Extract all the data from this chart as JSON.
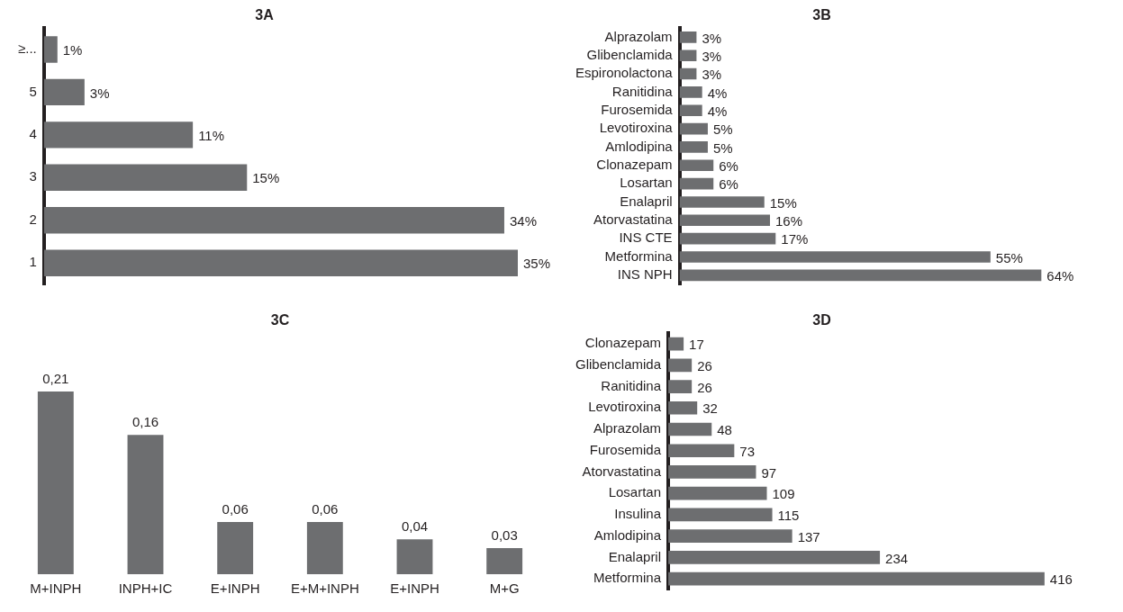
{
  "chart_data": [
    {
      "type": "bar",
      "title": "3A",
      "orientation": "horizontal",
      "tick_labels": "y",
      "grid": false,
      "color": "#6d6e70",
      "categories": [
        "≥...",
        "5",
        "4",
        "3",
        "2",
        "1"
      ],
      "values": [
        1,
        3,
        11,
        15,
        34,
        35
      ],
      "value_labels": [
        "1%",
        "3%",
        "11%",
        "15%",
        "34%",
        "35%"
      ]
    },
    {
      "type": "bar",
      "title": "3B",
      "orientation": "horizontal",
      "tick_labels": "y",
      "grid": false,
      "color": "#6d6e70",
      "categories": [
        "Alprazolam",
        "Glibenclamida",
        "Espironolactona",
        "Ranitidina",
        "Furosemida",
        "Levotiroxina",
        "Amlodipina",
        "Clonazepam",
        "Losartan",
        "Enalapril",
        "Atorvastatina",
        "INS CTE",
        "Metformina",
        "INS NPH"
      ],
      "values": [
        3,
        3,
        3,
        4,
        4,
        5,
        5,
        6,
        6,
        15,
        16,
        17,
        55,
        64
      ],
      "value_labels": [
        "3%",
        "3%",
        "3%",
        "4%",
        "4%",
        "5%",
        "5%",
        "6%",
        "6%",
        "15%",
        "16%",
        "17%",
        "55%",
        "64%"
      ]
    },
    {
      "type": "bar",
      "title": "3C",
      "tick_labels": "x",
      "grid": false,
      "color": "#6d6e70",
      "categories": [
        "M+INPH",
        "INPH+IC",
        "E+INPH",
        "E+M+INPH",
        "E+INPH",
        "M+G"
      ],
      "values": [
        0.21,
        0.16,
        0.06,
        0.06,
        0.04,
        0.03
      ],
      "value_labels": [
        "0,21",
        "0,16",
        "0,06",
        "0,06",
        "0,04",
        "0,03"
      ]
    },
    {
      "type": "bar",
      "title": "3D",
      "orientation": "horizontal",
      "tick_labels": "y",
      "grid": false,
      "color": "#6d6e70",
      "data_labels": true,
      "categories": [
        "Clonazepam",
        "Glibenclamida",
        "Ranitidina",
        "Levotiroxina",
        "Alprazolam",
        "Furosemida",
        "Atorvastatina",
        "Losartan",
        "Insulina",
        "Amlodipina",
        "Enalapril",
        "Metformina"
      ],
      "values": [
        17,
        26,
        26,
        32,
        48,
        73,
        97,
        109,
        115,
        137,
        234,
        416
      ]
    }
  ]
}
